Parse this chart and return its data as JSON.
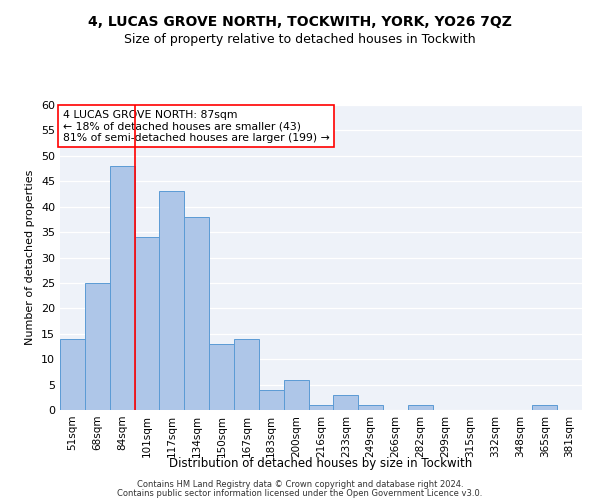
{
  "title1": "4, LUCAS GROVE NORTH, TOCKWITH, YORK, YO26 7QZ",
  "title2": "Size of property relative to detached houses in Tockwith",
  "xlabel": "Distribution of detached houses by size in Tockwith",
  "ylabel": "Number of detached properties",
  "categories": [
    "51sqm",
    "68sqm",
    "84sqm",
    "101sqm",
    "117sqm",
    "134sqm",
    "150sqm",
    "167sqm",
    "183sqm",
    "200sqm",
    "216sqm",
    "233sqm",
    "249sqm",
    "266sqm",
    "282sqm",
    "299sqm",
    "315sqm",
    "332sqm",
    "348sqm",
    "365sqm",
    "381sqm"
  ],
  "values": [
    14,
    25,
    48,
    34,
    43,
    38,
    13,
    14,
    4,
    6,
    1,
    3,
    1,
    0,
    1,
    0,
    0,
    0,
    0,
    1,
    0
  ],
  "bar_color": "#aec6e8",
  "bar_edge_color": "#5b9bd5",
  "ylim": [
    0,
    60
  ],
  "yticks": [
    0,
    5,
    10,
    15,
    20,
    25,
    30,
    35,
    40,
    45,
    50,
    55,
    60
  ],
  "property_line_x": 2.5,
  "annotation_text_line1": "4 LUCAS GROVE NORTH: 87sqm",
  "annotation_text_line2": "← 18% of detached houses are smaller (43)",
  "annotation_text_line3": "81% of semi-detached houses are larger (199) →",
  "footer1": "Contains HM Land Registry data © Crown copyright and database right 2024.",
  "footer2": "Contains public sector information licensed under the Open Government Licence v3.0.",
  "bg_color": "#eef2f9"
}
